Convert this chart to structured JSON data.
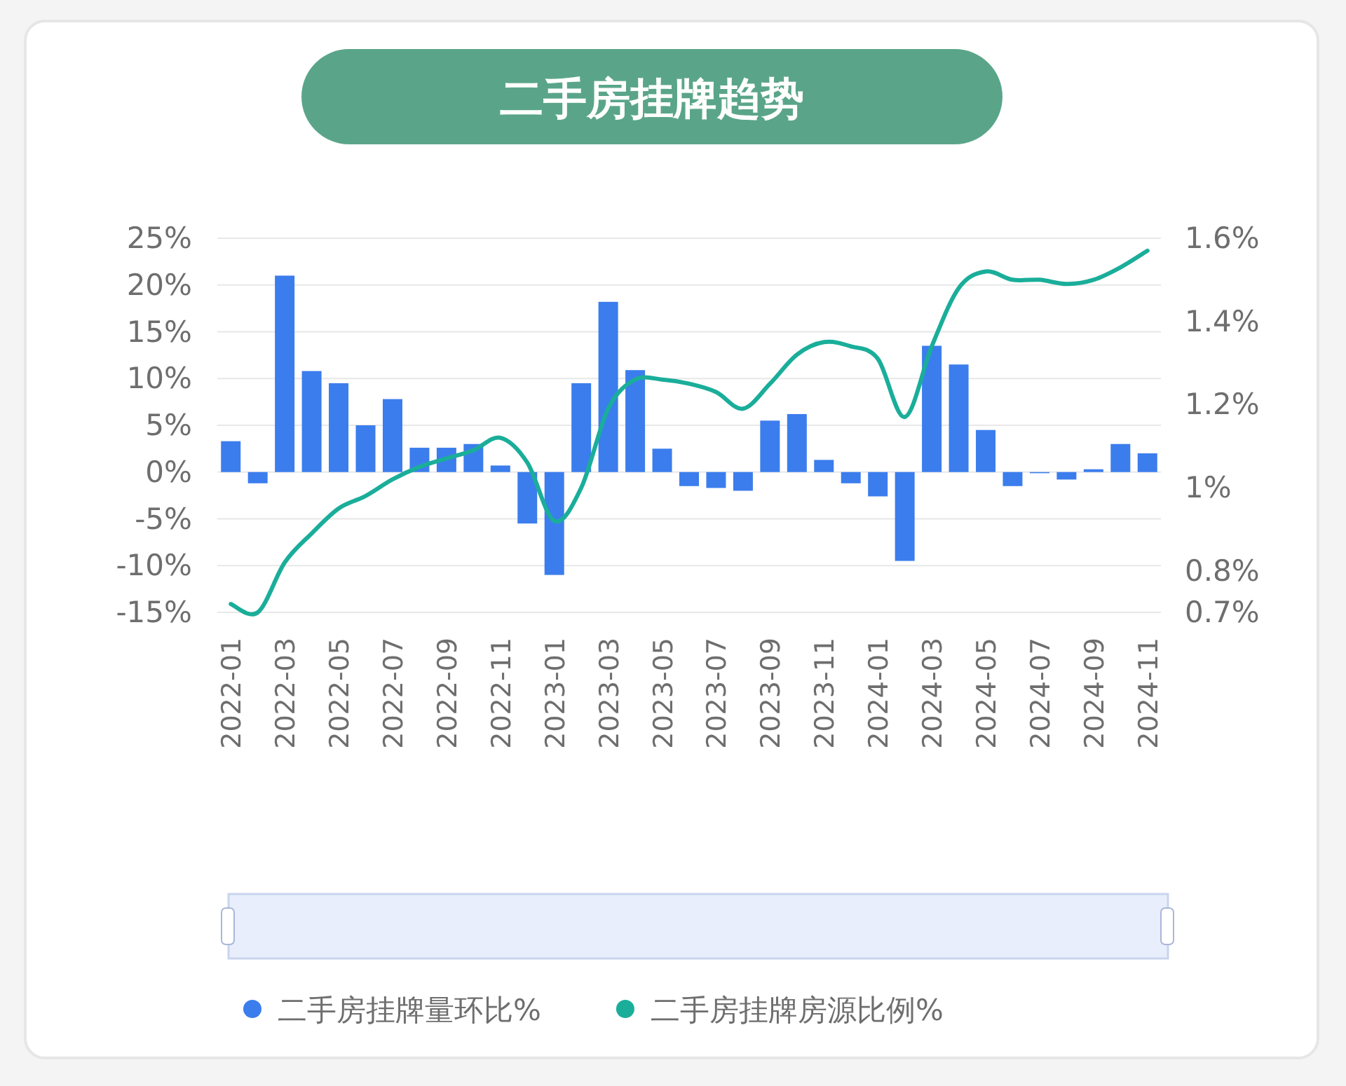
{
  "chart_data": {
    "type": "bar",
    "title": "二手房挂牌趋势",
    "categories": [
      "2022-01",
      null,
      "2022-03",
      null,
      "2022-05",
      null,
      "2022-07",
      null,
      "2022-09",
      null,
      "2022-11",
      null,
      "2023-01",
      null,
      "2023-03",
      null,
      "2023-05",
      null,
      "2023-07",
      null,
      "2023-09",
      null,
      "2023-11",
      null,
      "2024-01",
      null,
      "2024-03",
      null,
      "2024-05",
      null,
      "2024-07",
      null,
      "2024-09",
      null,
      "2024-11"
    ],
    "series": [
      {
        "name": "二手房挂牌量环比%",
        "color": "#3b7ded",
        "values": [
          3.3,
          -1.2,
          21,
          10.8,
          9.5,
          5,
          7.8,
          2.6,
          2.6,
          3,
          0.7,
          -5.5,
          -11,
          9.5,
          18.2,
          10.9,
          2.5,
          -1.5,
          -1.7,
          -2,
          5.5,
          6.2,
          1.3,
          -1.2,
          -2.6,
          -9.5,
          13.5,
          11.5,
          4.5,
          -1.5,
          0,
          -0.8,
          0.3,
          3,
          2
        ]
      },
      {
        "name": "二手房挂牌房源比例%",
        "type": "line",
        "axis": "y2",
        "color": "#1aae9a",
        "values": [
          0.72,
          0.7,
          0.82,
          0.89,
          0.95,
          0.98,
          1.02,
          1.05,
          1.07,
          1.09,
          1.12,
          1.06,
          0.92,
          1.0,
          1.19,
          1.26,
          1.26,
          1.25,
          1.23,
          1.19,
          1.25,
          1.32,
          1.35,
          1.34,
          1.31,
          1.17,
          1.34,
          1.48,
          1.52,
          1.5,
          1.5,
          1.49,
          1.5,
          1.53,
          1.57
        ]
      }
    ],
    "ylim": [
      -15,
      25
    ],
    "yticks": [
      {
        "value": -15,
        "label": "-15%"
      },
      {
        "value": -10,
        "label": "-10%"
      },
      {
        "value": -5,
        "label": "-5%"
      },
      {
        "value": 0,
        "label": "0%"
      },
      {
        "value": 5,
        "label": "5%"
      },
      {
        "value": 10,
        "label": "10%"
      },
      {
        "value": 15,
        "label": "15%"
      },
      {
        "value": 20,
        "label": "20%"
      },
      {
        "value": 25,
        "label": "25%"
      }
    ],
    "y2lim": [
      0.7,
      1.6
    ],
    "y2ticks": [
      {
        "value": 0.7,
        "label": "0.7%"
      },
      {
        "value": 0.8,
        "label": "0.8%"
      },
      {
        "value": 1,
        "label": "1%"
      },
      {
        "value": 1.2,
        "label": "1.2%"
      },
      {
        "value": 1.4,
        "label": "1.4%"
      },
      {
        "value": 1.6,
        "label": "1.6%"
      }
    ],
    "grid": "y",
    "legend": "bottom"
  }
}
